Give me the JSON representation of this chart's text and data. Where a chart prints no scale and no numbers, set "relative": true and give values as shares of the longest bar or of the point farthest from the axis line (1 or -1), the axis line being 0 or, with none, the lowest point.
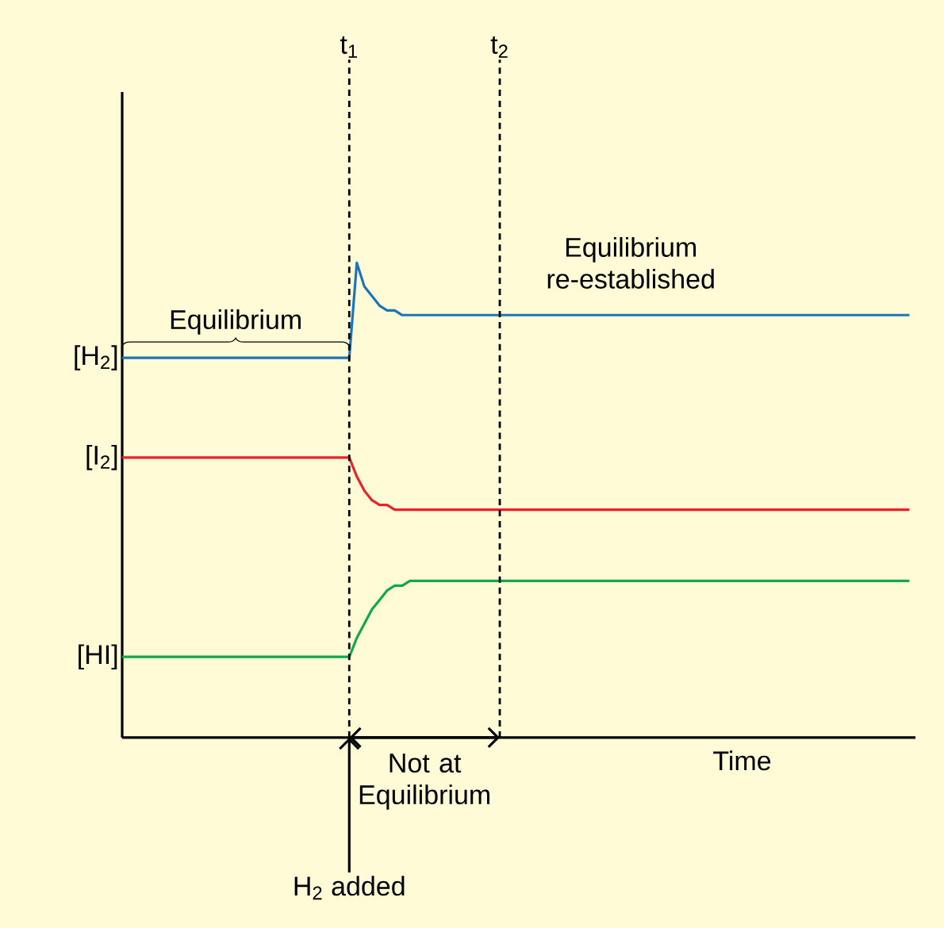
{
  "chart_data": {
    "type": "line",
    "relative": true,
    "xlabel": "Time",
    "categories": [
      null,
      null,
      null,
      null,
      null,
      null,
      null,
      null,
      null,
      null,
      null,
      null,
      null,
      null,
      null,
      null,
      null,
      null,
      null,
      null,
      null,
      null,
      null,
      null,
      null,
      null,
      null,
      null,
      null,
      null,
      null,
      null,
      null,
      null,
      null,
      null,
      null,
      null,
      null,
      null,
      null,
      null,
      null,
      null,
      null,
      null,
      null,
      null,
      null,
      null,
      null,
      null,
      null,
      null,
      null,
      null,
      null,
      null,
      null,
      null,
      null,
      null,
      null,
      null,
      null,
      null,
      null,
      null,
      null,
      null,
      null,
      null,
      null,
      null,
      null,
      null,
      null,
      null,
      null,
      null,
      null,
      null,
      null,
      null,
      null,
      null,
      null,
      null,
      null,
      null,
      null,
      null,
      null,
      null,
      null,
      null,
      null,
      null,
      null,
      null,
      null,
      null,
      null,
      null,
      null
    ],
    "series": [
      {
        "color": "#1a75bb",
        "values": [
          0.8,
          0.8,
          0.8,
          0.8,
          0.8,
          0.8,
          0.8,
          0.8,
          0.8,
          0.8,
          0.8,
          0.8,
          0.8,
          0.8,
          0.8,
          0.8,
          0.8,
          0.8,
          0.8,
          0.8,
          0.8,
          0.8,
          0.8,
          0.8,
          0.8,
          0.8,
          0.8,
          0.8,
          0.8,
          0.8,
          0.8,
          1,
          0.95,
          0.93,
          0.91,
          0.9,
          0.9,
          0.89,
          0.89,
          0.89,
          0.89,
          0.89,
          0.89,
          0.89,
          0.89,
          0.89,
          0.89,
          0.89,
          0.89,
          0.89,
          0.89,
          0.89,
          0.89,
          0.89,
          0.89,
          0.89,
          0.89,
          0.89,
          0.89,
          0.89,
          0.89,
          0.89,
          0.89,
          0.89,
          0.89,
          0.89,
          0.89,
          0.89,
          0.89,
          0.89,
          0.89,
          0.89,
          0.89,
          0.89,
          0.89,
          0.89,
          0.89,
          0.89,
          0.89,
          0.89,
          0.89,
          0.89,
          0.89,
          0.89,
          0.89,
          0.89,
          0.89,
          0.89,
          0.89,
          0.89,
          0.89,
          0.89,
          0.89,
          0.89,
          0.89,
          0.89,
          0.89,
          0.89,
          0.89,
          0.89,
          0.89,
          0.89,
          0.89,
          0.89,
          0.89
        ]
      },
      {
        "color": "#e8232a",
        "values": [
          0.59,
          0.59,
          0.59,
          0.59,
          0.59,
          0.59,
          0.59,
          0.59,
          0.59,
          0.59,
          0.59,
          0.59,
          0.59,
          0.59,
          0.59,
          0.59,
          0.59,
          0.59,
          0.59,
          0.59,
          0.59,
          0.59,
          0.59,
          0.59,
          0.59,
          0.59,
          0.59,
          0.59,
          0.59,
          0.59,
          0.59,
          0.55,
          0.52,
          0.5,
          0.49,
          0.49,
          0.48,
          0.48,
          0.48,
          0.48,
          0.48,
          0.48,
          0.48,
          0.48,
          0.48,
          0.48,
          0.48,
          0.48,
          0.48,
          0.48,
          0.48,
          0.48,
          0.48,
          0.48,
          0.48,
          0.48,
          0.48,
          0.48,
          0.48,
          0.48,
          0.48,
          0.48,
          0.48,
          0.48,
          0.48,
          0.48,
          0.48,
          0.48,
          0.48,
          0.48,
          0.48,
          0.48,
          0.48,
          0.48,
          0.48,
          0.48,
          0.48,
          0.48,
          0.48,
          0.48,
          0.48,
          0.48,
          0.48,
          0.48,
          0.48,
          0.48,
          0.48,
          0.48,
          0.48,
          0.48,
          0.48,
          0.48,
          0.48,
          0.48,
          0.48,
          0.48,
          0.48,
          0.48,
          0.48,
          0.48,
          0.48,
          0.48,
          0.48,
          0.48,
          0.48
        ]
      },
      {
        "color": "#10a84a",
        "values": [
          0.17,
          0.17,
          0.17,
          0.17,
          0.17,
          0.17,
          0.17,
          0.17,
          0.17,
          0.17,
          0.17,
          0.17,
          0.17,
          0.17,
          0.17,
          0.17,
          0.17,
          0.17,
          0.17,
          0.17,
          0.17,
          0.17,
          0.17,
          0.17,
          0.17,
          0.17,
          0.17,
          0.17,
          0.17,
          0.17,
          0.17,
          0.21,
          0.24,
          0.27,
          0.29,
          0.31,
          0.32,
          0.32,
          0.33,
          0.33,
          0.33,
          0.33,
          0.33,
          0.33,
          0.33,
          0.33,
          0.33,
          0.33,
          0.33,
          0.33,
          0.33,
          0.33,
          0.33,
          0.33,
          0.33,
          0.33,
          0.33,
          0.33,
          0.33,
          0.33,
          0.33,
          0.33,
          0.33,
          0.33,
          0.33,
          0.33,
          0.33,
          0.33,
          0.33,
          0.33,
          0.33,
          0.33,
          0.33,
          0.33,
          0.33,
          0.33,
          0.33,
          0.33,
          0.33,
          0.33,
          0.33,
          0.33,
          0.33,
          0.33,
          0.33,
          0.33,
          0.33,
          0.33,
          0.33,
          0.33,
          0.33,
          0.33,
          0.33,
          0.33,
          0.33,
          0.33,
          0.33,
          0.33,
          0.33,
          0.33,
          0.33,
          0.33,
          0.33,
          0.33,
          0.33
        ]
      }
    ],
    "annotations": [
      "[H$_{2}$]",
      "[I$_{2}$]",
      "[HI]",
      "t$_{1}$",
      "t$_{2}$",
      "Equilibrium",
      "Equilibrium re-established",
      "Not at Equilibrium",
      "H$_{2}$ added"
    ]
  }
}
